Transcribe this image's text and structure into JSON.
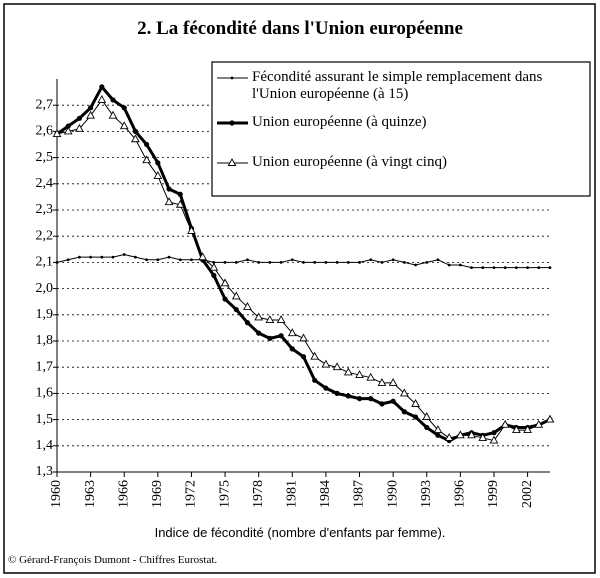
{
  "chart_data": {
    "type": "line",
    "title": "2. La fécondité dans l'Union européenne",
    "x_label": "Indice de fécondité (nombre d'enfants par femme).",
    "source": "© Gérard-François Dumont - Chiffres Eurostat.",
    "x": [
      1960,
      1961,
      1962,
      1963,
      1964,
      1965,
      1966,
      1967,
      1968,
      1969,
      1970,
      1971,
      1972,
      1973,
      1974,
      1975,
      1976,
      1977,
      1978,
      1979,
      1980,
      1981,
      1982,
      1983,
      1984,
      1985,
      1986,
      1987,
      1988,
      1989,
      1990,
      1991,
      1992,
      1993,
      1994,
      1995,
      1996,
      1997,
      1998,
      1999,
      2000,
      2001,
      2002,
      2003,
      2004
    ],
    "series": [
      {
        "name": "Fécondité assurant le simple remplacement dans l'Union européenne (à 15)",
        "color": "#000000",
        "marker": "dot",
        "values": [
          2.1,
          2.11,
          2.12,
          2.12,
          2.12,
          2.12,
          2.13,
          2.12,
          2.11,
          2.11,
          2.12,
          2.11,
          2.11,
          2.11,
          2.1,
          2.1,
          2.1,
          2.11,
          2.1,
          2.1,
          2.1,
          2.11,
          2.1,
          2.1,
          2.1,
          2.1,
          2.1,
          2.1,
          2.11,
          2.1,
          2.11,
          2.1,
          2.09,
          2.1,
          2.11,
          2.09,
          2.09,
          2.08,
          2.08,
          2.08,
          2.08,
          2.08,
          2.08,
          2.08,
          2.08
        ]
      },
      {
        "name": "Union européenne (à quinze)",
        "color": "#000000",
        "marker": "circle",
        "values": [
          2.59,
          2.62,
          2.65,
          2.69,
          2.77,
          2.72,
          2.69,
          2.6,
          2.55,
          2.48,
          2.38,
          2.36,
          2.23,
          2.11,
          2.05,
          1.96,
          1.92,
          1.87,
          1.83,
          1.81,
          1.82,
          1.77,
          1.74,
          1.65,
          1.62,
          1.6,
          1.59,
          1.58,
          1.58,
          1.56,
          1.57,
          1.53,
          1.51,
          1.47,
          1.44,
          1.42,
          1.44,
          1.45,
          1.44,
          1.45,
          1.48,
          1.47,
          1.47,
          1.48,
          1.5
        ]
      },
      {
        "name": "Union européenne (à vingt cinq)",
        "color": "#000000",
        "marker": "triangle",
        "values": [
          2.59,
          2.6,
          2.61,
          2.66,
          2.72,
          2.66,
          2.62,
          2.57,
          2.49,
          2.43,
          2.33,
          2.32,
          2.22,
          2.12,
          2.08,
          2.02,
          1.97,
          1.93,
          1.89,
          1.88,
          1.88,
          1.83,
          1.81,
          1.74,
          1.71,
          1.7,
          1.68,
          1.67,
          1.66,
          1.64,
          1.64,
          1.6,
          1.56,
          1.51,
          1.46,
          1.43,
          1.44,
          1.44,
          1.43,
          1.42,
          1.48,
          1.46,
          1.46,
          1.48,
          1.5
        ]
      }
    ],
    "xlim": [
      1960,
      2004
    ],
    "xticks": [
      1960,
      1963,
      1966,
      1969,
      1972,
      1975,
      1978,
      1981,
      1984,
      1987,
      1990,
      1993,
      1996,
      1999,
      2002
    ],
    "ylim": [
      1.3,
      2.8
    ],
    "yticks": [
      {
        "value": 1.3,
        "label": "1,3"
      },
      {
        "value": 1.4,
        "label": "1,4"
      },
      {
        "value": 1.5,
        "label": "1,5"
      },
      {
        "value": 1.6,
        "label": "1,6"
      },
      {
        "value": 1.7,
        "label": "1,7"
      },
      {
        "value": 1.8,
        "label": "1,8"
      },
      {
        "value": 1.9,
        "label": "1,9"
      },
      {
        "value": 2.0,
        "label": "2,0"
      },
      {
        "value": 2.1,
        "label": "2,1"
      },
      {
        "value": 2.2,
        "label": "2,2"
      },
      {
        "value": 2.3,
        "label": "2,3"
      },
      {
        "value": 2.4,
        "label": "2,4"
      },
      {
        "value": 2.5,
        "label": "2,5"
      },
      {
        "value": 2.6,
        "label": "2,6"
      },
      {
        "value": 2.7,
        "label": "2,7"
      }
    ],
    "grid": true
  }
}
